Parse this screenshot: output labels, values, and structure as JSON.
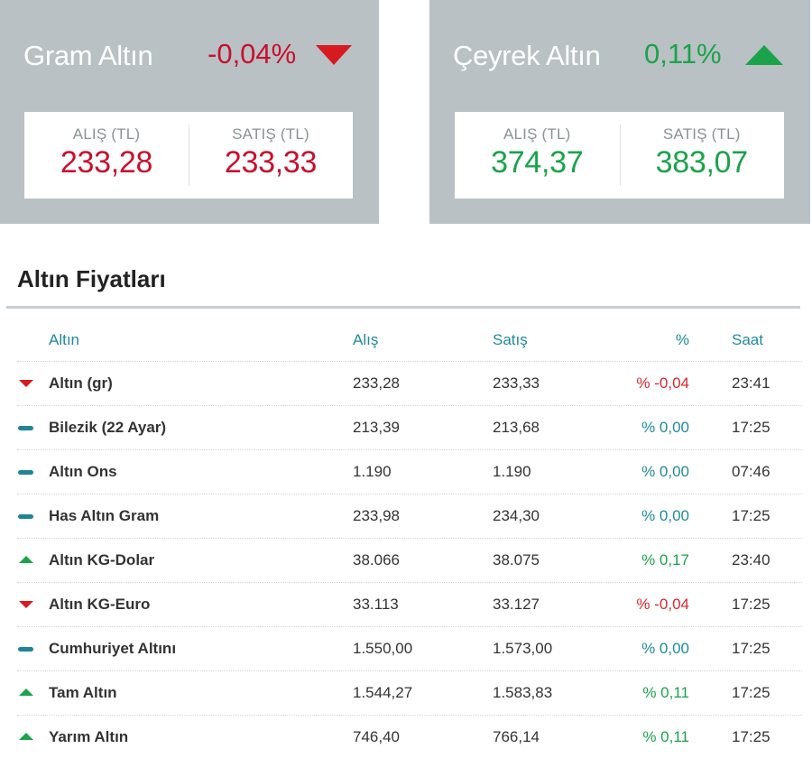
{
  "cards": [
    {
      "title": "Gram Altın",
      "change": "-0,04%",
      "trend": "down",
      "alis_label": "ALIŞ (TL)",
      "alis_value": "233,28",
      "satis_label": "SATIŞ (TL)",
      "satis_value": "233,33"
    },
    {
      "title": "Çeyrek Altın",
      "change": "0,11%",
      "trend": "up",
      "alis_label": "ALIŞ (TL)",
      "alis_value": "374,37",
      "satis_label": "SATIŞ (TL)",
      "satis_value": "383,07"
    }
  ],
  "section": {
    "title": "Altın Fiyatları"
  },
  "table": {
    "headers": {
      "name": "Altın",
      "alis": "Alış",
      "satis": "Satış",
      "pct": "%",
      "saat": "Saat"
    },
    "rows": [
      {
        "trend": "down",
        "name": "Altın (gr)",
        "alis": "233,28",
        "satis": "233,33",
        "pct": "% -0,04",
        "saat": "23:41"
      },
      {
        "trend": "flat",
        "name": "Bilezik (22 Ayar)",
        "alis": "213,39",
        "satis": "213,68",
        "pct": "% 0,00",
        "saat": "17:25"
      },
      {
        "trend": "flat",
        "name": "Altın Ons",
        "alis": "1.190",
        "satis": "1.190",
        "pct": "% 0,00",
        "saat": "07:46"
      },
      {
        "trend": "flat",
        "name": "Has Altın Gram",
        "alis": "233,98",
        "satis": "234,30",
        "pct": "% 0,00",
        "saat": "17:25"
      },
      {
        "trend": "up",
        "name": "Altın KG-Dolar",
        "alis": "38.066",
        "satis": "38.075",
        "pct": "% 0,17",
        "saat": "23:40"
      },
      {
        "trend": "down",
        "name": "Altın KG-Euro",
        "alis": "33.113",
        "satis": "33.127",
        "pct": "% -0,04",
        "saat": "17:25"
      },
      {
        "trend": "flat",
        "name": "Cumhuriyet Altını",
        "alis": "1.550,00",
        "satis": "1.573,00",
        "pct": "% 0,00",
        "saat": "17:25"
      },
      {
        "trend": "up",
        "name": "Tam Altın",
        "alis": "1.544,27",
        "satis": "1.583,83",
        "pct": "% 0,11",
        "saat": "17:25"
      },
      {
        "trend": "up",
        "name": "Yarım Altın",
        "alis": "746,40",
        "satis": "766,14",
        "pct": "% 0,11",
        "saat": "17:25"
      }
    ]
  },
  "colors": {
    "card_bg": "#b9c1c4",
    "down": "#d71920",
    "up": "#1aa34a",
    "flat": "#1d8595",
    "header_text": "#1f8a9a"
  }
}
